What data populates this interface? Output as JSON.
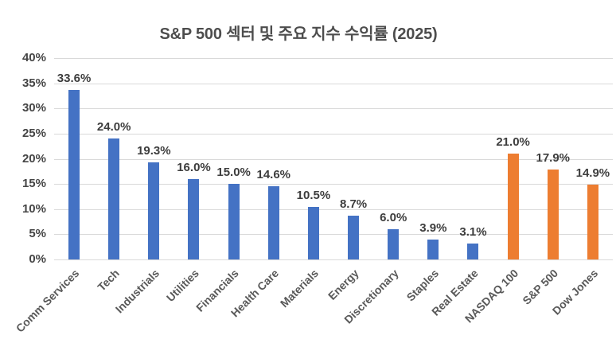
{
  "chart_data": {
    "type": "bar",
    "title": "S&P 500 섹터 및 주요 지수 수익률 (2025)",
    "categories": [
      "Comm Services",
      "Tech",
      "Industrials",
      "Utilities",
      "Financials",
      "Health Care",
      "Materials",
      "Energy",
      "Discretionary",
      "Staples",
      "Real Estate",
      "NASDAQ 100",
      "S&P 500",
      "Dow Jones"
    ],
    "values": [
      33.6,
      24.0,
      19.3,
      16.0,
      15.0,
      14.6,
      10.5,
      8.7,
      6.0,
      3.9,
      3.1,
      21.0,
      17.9,
      14.9
    ],
    "data_labels": [
      "33.6%",
      "24.0%",
      "19.3%",
      "16.0%",
      "15.0%",
      "14.6%",
      "10.5%",
      "8.7%",
      "6.0%",
      "3.9%",
      "3.1%",
      "21.0%",
      "17.9%",
      "14.9%"
    ],
    "groups": [
      "sector",
      "sector",
      "sector",
      "sector",
      "sector",
      "sector",
      "sector",
      "sector",
      "sector",
      "sector",
      "sector",
      "index",
      "index",
      "index"
    ],
    "colors": {
      "sector": "#4472C4",
      "index": "#ED7D31"
    },
    "grid_color": "#d9d9d9",
    "xlabel": "",
    "ylabel": "",
    "ylim": [
      0,
      40
    ],
    "ytick_values": [
      0,
      5,
      10,
      15,
      20,
      25,
      30,
      35,
      40
    ],
    "ytick_labels": [
      "0%",
      "5%",
      "10%",
      "15%",
      "20%",
      "25%",
      "30%",
      "35%",
      "40%"
    ],
    "grid": true,
    "legend": "none"
  }
}
